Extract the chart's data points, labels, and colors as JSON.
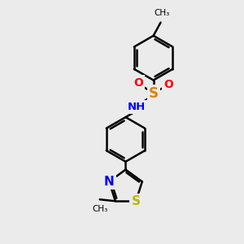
{
  "background_color": "#ebebeb",
  "bond_color": "#000000",
  "bond_width": 1.8,
  "figsize": [
    3.0,
    3.0
  ],
  "dpi": 100,
  "xlim": [
    0,
    10
  ],
  "ylim": [
    0,
    10
  ],
  "colors": {
    "N": "#0000ff",
    "O": "#ff0000",
    "S_sulf": "#e08000",
    "S_thia": "#b8b800",
    "C": "#000000"
  }
}
